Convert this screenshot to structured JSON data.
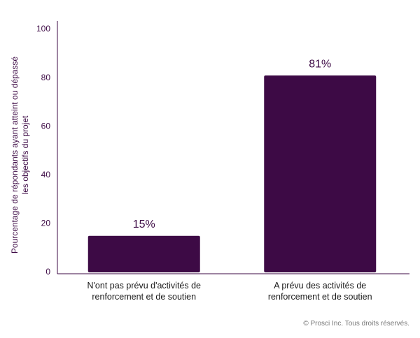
{
  "chart_data": {
    "type": "bar",
    "y_label": "Pourcentage de répondants ayant atteint ou dépassé les objectifs du projet",
    "categories": [
      "N'ont pas prévu d'activités de renforcement et de soutien",
      "A prévu des activités de renforcement et de soutien"
    ],
    "values": [
      15,
      81
    ],
    "value_labels": [
      "15%",
      "81%"
    ],
    "color": "#3d0a45",
    "ylim": [
      0,
      100
    ],
    "yticks": [
      0,
      20,
      40,
      60,
      80,
      100
    ],
    "grid": false,
    "footer": "© Prosci Inc. Tous droits réservés."
  }
}
